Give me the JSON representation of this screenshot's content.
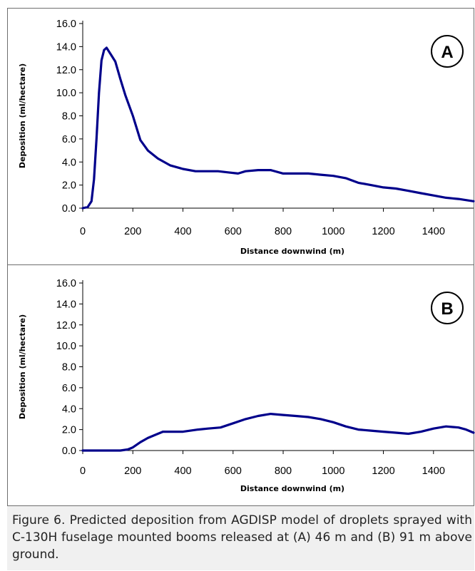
{
  "chart_data": [
    {
      "type": "line",
      "badge": "A",
      "xlabel": "Distance downwind (m)",
      "ylabel": "Deposition (ml/hectare)",
      "xlim": [
        0,
        1560
      ],
      "ylim": [
        0,
        16
      ],
      "xticks": [
        "0",
        "200",
        "400",
        "600",
        "800",
        "1000",
        "1200",
        "1400"
      ],
      "yticks": [
        "0.0",
        "2.0",
        "4.0",
        "6.0",
        "8.0",
        "10.0",
        "12.0",
        "14.0",
        "16.0"
      ],
      "line_color": "#00008b",
      "grid": false,
      "series": [
        {
          "x": [
            0,
            20,
            35,
            45,
            55,
            65,
            75,
            85,
            95,
            110,
            130,
            150,
            170,
            200,
            230,
            260,
            300,
            350,
            400,
            450,
            480,
            500,
            540,
            580,
            620,
            650,
            700,
            750,
            800,
            850,
            900,
            950,
            1000,
            1050,
            1100,
            1150,
            1200,
            1250,
            1300,
            1350,
            1400,
            1450,
            1500,
            1560
          ],
          "y": [
            0.0,
            0.1,
            0.6,
            2.5,
            6.0,
            10.0,
            12.8,
            13.7,
            13.9,
            13.4,
            12.7,
            11.2,
            9.8,
            8.0,
            5.9,
            5.0,
            4.3,
            3.7,
            3.4,
            3.2,
            3.2,
            3.2,
            3.2,
            3.1,
            3.0,
            3.2,
            3.3,
            3.3,
            3.0,
            3.0,
            3.0,
            2.9,
            2.8,
            2.6,
            2.2,
            2.0,
            1.8,
            1.7,
            1.5,
            1.3,
            1.1,
            0.9,
            0.8,
            0.6
          ]
        }
      ]
    },
    {
      "type": "line",
      "badge": "B",
      "xlabel": "Distance downwind (m)",
      "ylabel": "Deposition (ml/hectare)",
      "xlim": [
        0,
        1560
      ],
      "ylim": [
        0,
        16
      ],
      "xticks": [
        "0",
        "200",
        "400",
        "600",
        "800",
        "1000",
        "1200",
        "1400"
      ],
      "yticks": [
        "0.0",
        "2.0",
        "4.0",
        "6.0",
        "8.0",
        "10.0",
        "12.0",
        "14.0",
        "16.0"
      ],
      "line_color": "#00008b",
      "grid": false,
      "series": [
        {
          "x": [
            0,
            100,
            150,
            180,
            200,
            230,
            260,
            300,
            320,
            340,
            370,
            400,
            430,
            460,
            500,
            550,
            600,
            650,
            700,
            750,
            800,
            850,
            900,
            950,
            1000,
            1050,
            1100,
            1150,
            1200,
            1250,
            1300,
            1350,
            1400,
            1450,
            1500,
            1530,
            1560
          ],
          "y": [
            0.0,
            0.0,
            0.0,
            0.1,
            0.3,
            0.8,
            1.2,
            1.6,
            1.8,
            1.8,
            1.8,
            1.8,
            1.9,
            2.0,
            2.1,
            2.2,
            2.6,
            3.0,
            3.3,
            3.5,
            3.4,
            3.3,
            3.2,
            3.0,
            2.7,
            2.3,
            2.0,
            1.9,
            1.8,
            1.7,
            1.6,
            1.8,
            2.1,
            2.3,
            2.2,
            2.0,
            1.7
          ]
        }
      ]
    }
  ],
  "caption": "Figure 6. Predicted deposition from AGDISP model of droplets sprayed with C-130H fuselage mounted booms released at (A) 46 m and (B) 91 m above ground."
}
